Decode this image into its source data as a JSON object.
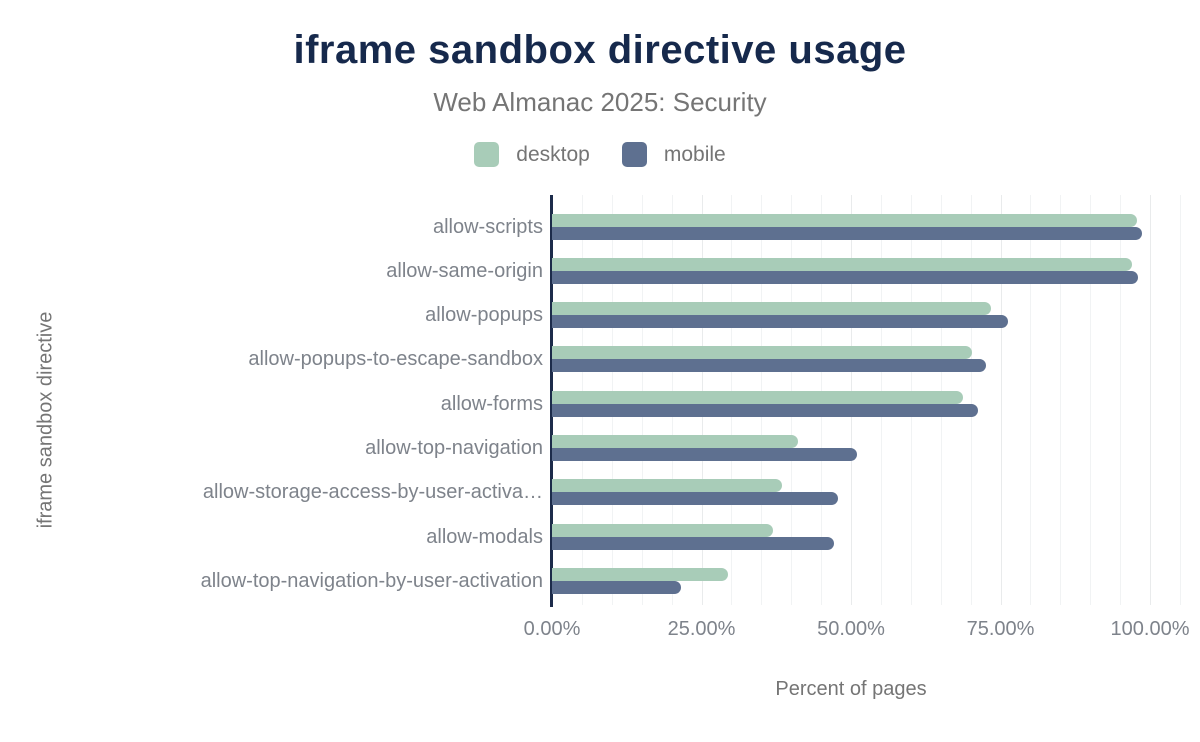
{
  "header": {
    "title": "iframe sandbox directive usage",
    "subtitle": "Web Almanac 2025: Security"
  },
  "legend": {
    "items": [
      {
        "label": "desktop",
        "color": "#a8ccb8"
      },
      {
        "label": "mobile",
        "color": "#5e7090"
      }
    ]
  },
  "colors": {
    "title_navy": "#16294c",
    "axis_navy": "#1c2b4a",
    "desktop_green": "#a8ccb8",
    "mobile_slate": "#5e7090",
    "muted_text": "#757575",
    "tick_text": "#7e838b",
    "gridline_minor": "#f1f3f4",
    "gridline_major": "#e9ebec"
  },
  "chart_data": {
    "type": "bar",
    "orientation": "horizontal",
    "title": "iframe sandbox directive usage",
    "subtitle": "Web Almanac 2025: Security",
    "xlabel": "Percent of pages",
    "ylabel": "iframe sandbox directive",
    "xlim": [
      0,
      100
    ],
    "x_tick_labels": [
      "0.00%",
      "25.00%",
      "50.00%",
      "75.00%",
      "100.00%"
    ],
    "x_tick_values": [
      0,
      25,
      50,
      75,
      100
    ],
    "grid": "vertical gridlines every 5%, light gray",
    "legend_position": "top",
    "categories": [
      "allow-scripts",
      "allow-same-origin",
      "allow-popups",
      "allow-popups-to-escape-sandbox",
      "allow-forms",
      "allow-top-navigation",
      "allow-storage-access-by-user-activa…",
      "allow-modals",
      "allow-top-navigation-by-user-activation"
    ],
    "series": [
      {
        "name": "desktop",
        "color": "#a8ccb8",
        "values": [
          97.8,
          96.9,
          73.4,
          70.2,
          68.8,
          41.1,
          38.5,
          37.0,
          29.4
        ]
      },
      {
        "name": "mobile",
        "color": "#5e7090",
        "values": [
          98.6,
          98.0,
          76.3,
          72.6,
          71.2,
          51.0,
          47.8,
          47.2,
          21.6
        ]
      }
    ]
  }
}
